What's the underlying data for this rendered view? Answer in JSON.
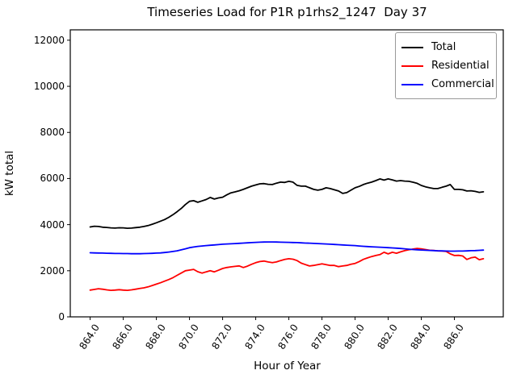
{
  "figure_title": "Timeseries Load for P1R p1rhs2_1247  Day 37",
  "chart_data": {
    "type": "line",
    "title": "Timeseries Load for P1R p1rhs2_1247  Day 37",
    "xlabel": "Hour of Year",
    "ylabel": "kW total",
    "xlim": [
      862.8,
      888.95
    ],
    "ylim": [
      0,
      12450
    ],
    "grid": false,
    "legend_position": "upper right",
    "xticks": [
      864.0,
      866.0,
      868.0,
      870.0,
      872.0,
      874.0,
      876.0,
      878.0,
      880.0,
      882.0,
      884.0,
      886.0
    ],
    "xtick_labels": [
      "864.0",
      "866.0",
      "868.0",
      "870.0",
      "872.0",
      "874.0",
      "876.0",
      "878.0",
      "880.0",
      "882.0",
      "884.0",
      "886.0"
    ],
    "yticks": [
      0,
      2000,
      4000,
      6000,
      8000,
      10000,
      12000
    ],
    "ytick_labels": [
      "0",
      "2000",
      "4000",
      "6000",
      "8000",
      "10000",
      "12000"
    ],
    "x_start": 864.0,
    "x_step_hours": 0.25,
    "x_end": 887.75,
    "x": [
      864.0,
      864.25,
      864.5,
      864.75,
      865.0,
      865.25,
      865.5,
      865.75,
      866.0,
      866.25,
      866.5,
      866.75,
      867.0,
      867.25,
      867.5,
      867.75,
      868.0,
      868.25,
      868.5,
      868.75,
      869.0,
      869.25,
      869.5,
      869.75,
      870.0,
      870.25,
      870.5,
      870.75,
      871.0,
      871.25,
      871.5,
      871.75,
      872.0,
      872.25,
      872.5,
      872.75,
      873.0,
      873.25,
      873.5,
      873.75,
      874.0,
      874.25,
      874.5,
      874.75,
      875.0,
      875.25,
      875.5,
      875.75,
      876.0,
      876.25,
      876.5,
      876.75,
      877.0,
      877.25,
      877.5,
      877.75,
      878.0,
      878.25,
      878.5,
      878.75,
      879.0,
      879.25,
      879.5,
      879.75,
      880.0,
      880.25,
      880.5,
      880.75,
      881.0,
      881.25,
      881.5,
      881.75,
      882.0,
      882.25,
      882.5,
      882.75,
      883.0,
      883.25,
      883.5,
      883.75,
      884.0,
      884.25,
      884.5,
      884.75,
      885.0,
      885.25,
      885.5,
      885.75,
      886.0,
      886.25,
      886.5,
      886.75,
      887.0,
      887.25,
      887.5,
      887.75
    ],
    "series": [
      {
        "name": "Total",
        "color": "#000000",
        "values": [
          3900,
          3930,
          3920,
          3890,
          3880,
          3860,
          3850,
          3865,
          3860,
          3845,
          3850,
          3870,
          3890,
          3920,
          3960,
          4020,
          4080,
          4150,
          4220,
          4320,
          4430,
          4560,
          4700,
          4870,
          5010,
          5040,
          4970,
          5030,
          5090,
          5180,
          5110,
          5160,
          5190,
          5290,
          5380,
          5420,
          5470,
          5530,
          5600,
          5670,
          5720,
          5770,
          5780,
          5750,
          5740,
          5800,
          5845,
          5830,
          5880,
          5845,
          5705,
          5670,
          5670,
          5600,
          5530,
          5495,
          5530,
          5600,
          5565,
          5510,
          5460,
          5355,
          5390,
          5495,
          5600,
          5660,
          5740,
          5800,
          5845,
          5910,
          5985,
          5930,
          5985,
          5940,
          5890,
          5910,
          5890,
          5880,
          5840,
          5790,
          5700,
          5640,
          5600,
          5565,
          5565,
          5620,
          5670,
          5740,
          5530,
          5530,
          5510,
          5460,
          5470,
          5440,
          5400,
          5425
        ]
      },
      {
        "name": "Residential",
        "color": "#ff0000",
        "values": [
          1160,
          1190,
          1220,
          1200,
          1170,
          1150,
          1160,
          1180,
          1160,
          1150,
          1170,
          1200,
          1230,
          1260,
          1300,
          1360,
          1420,
          1480,
          1550,
          1620,
          1700,
          1800,
          1900,
          2000,
          2030,
          2060,
          1960,
          1900,
          1950,
          2000,
          1950,
          2020,
          2100,
          2140,
          2170,
          2190,
          2210,
          2140,
          2200,
          2280,
          2350,
          2400,
          2420,
          2380,
          2350,
          2380,
          2440,
          2490,
          2520,
          2500,
          2440,
          2330,
          2265,
          2205,
          2230,
          2265,
          2300,
          2265,
          2230,
          2230,
          2180,
          2205,
          2230,
          2280,
          2320,
          2400,
          2495,
          2555,
          2615,
          2660,
          2700,
          2800,
          2730,
          2800,
          2760,
          2820,
          2870,
          2910,
          2940,
          2970,
          2950,
          2920,
          2890,
          2880,
          2860,
          2855,
          2840,
          2730,
          2660,
          2670,
          2640,
          2490,
          2560,
          2590,
          2480,
          2520
        ]
      },
      {
        "name": "Commercial",
        "color": "#0000ff",
        "values": [
          2780,
          2775,
          2770,
          2765,
          2760,
          2755,
          2750,
          2750,
          2745,
          2745,
          2740,
          2740,
          2740,
          2745,
          2750,
          2755,
          2765,
          2775,
          2790,
          2810,
          2835,
          2865,
          2905,
          2950,
          3000,
          3030,
          3055,
          3075,
          3090,
          3105,
          3120,
          3135,
          3150,
          3160,
          3170,
          3180,
          3190,
          3200,
          3210,
          3220,
          3230,
          3240,
          3245,
          3250,
          3250,
          3245,
          3240,
          3235,
          3230,
          3225,
          3220,
          3210,
          3200,
          3195,
          3185,
          3180,
          3170,
          3160,
          3150,
          3140,
          3130,
          3120,
          3110,
          3100,
          3090,
          3075,
          3060,
          3050,
          3040,
          3030,
          3020,
          3010,
          3000,
          2990,
          2980,
          2965,
          2950,
          2935,
          2920,
          2910,
          2900,
          2890,
          2880,
          2875,
          2865,
          2860,
          2855,
          2850,
          2850,
          2852,
          2855,
          2860,
          2870,
          2875,
          2885,
          2895
        ]
      }
    ]
  },
  "legend": {
    "items": [
      {
        "label": "Total"
      },
      {
        "label": "Residential"
      },
      {
        "label": "Commercial"
      }
    ]
  }
}
